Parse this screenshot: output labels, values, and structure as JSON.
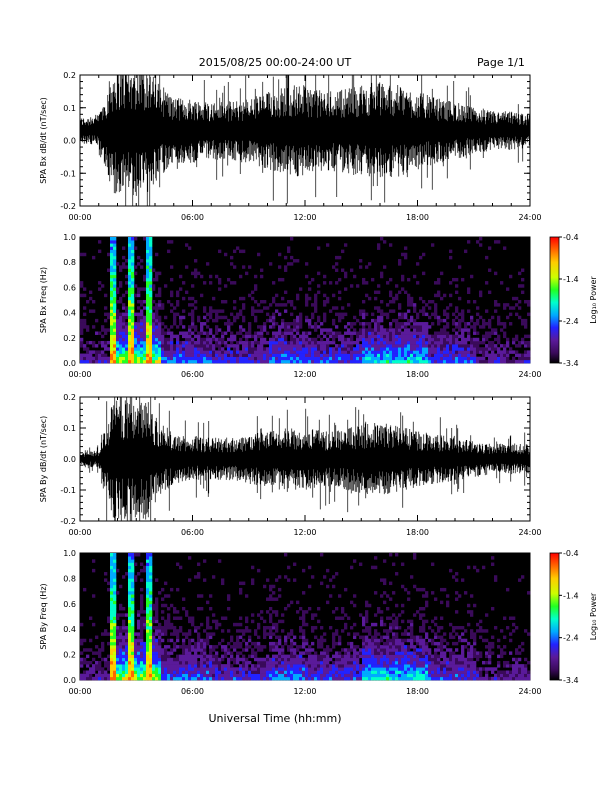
{
  "header": {
    "date_range": "2015/08/25  00:00-24:00 UT",
    "page": "Page 1/1"
  },
  "footer": {
    "xlabel": "Universal Time (hh:mm)"
  },
  "colors": {
    "trace": "#000000",
    "background": "#ffffff",
    "spectrogram_bg": "#000000",
    "colormap": [
      "#000000",
      "#3a0a5a",
      "#5a1a9a",
      "#2222ff",
      "#00aaff",
      "#00ffcc",
      "#22ff22",
      "#ccff00",
      "#ffcc00",
      "#ff6600",
      "#ff0000"
    ]
  },
  "chart_data": [
    {
      "type": "line",
      "name": "bx-waveform",
      "ylabel": "SPA Bx dB/dt (nT/sec)",
      "xlim": [
        "00:00",
        "24:00"
      ],
      "ylim": [
        -0.2,
        0.2
      ],
      "xticks": [
        "00:00",
        "06:00",
        "12:00",
        "18:00",
        "24:00"
      ],
      "yticks": [
        "-0.2",
        "-0.1",
        "0.0",
        "0.1",
        "0.2"
      ],
      "x_hours": [
        0,
        1,
        1.8,
        2.5,
        3,
        3.5,
        4,
        5,
        6,
        7,
        8,
        9,
        10,
        11,
        12,
        13,
        14,
        15,
        16,
        17,
        18,
        19,
        20,
        21,
        22,
        23,
        24
      ],
      "amplitude": [
        0.04,
        0.05,
        0.2,
        0.2,
        0.2,
        0.2,
        0.16,
        0.1,
        0.1,
        0.09,
        0.09,
        0.1,
        0.12,
        0.14,
        0.14,
        0.12,
        0.13,
        0.14,
        0.15,
        0.14,
        0.12,
        0.1,
        0.09,
        0.07,
        0.06,
        0.06,
        0.05
      ],
      "offset": 0.03
    },
    {
      "type": "heatmap",
      "name": "bx-spectrogram",
      "ylabel": "SPA Bx Freq (Hz)",
      "xlim": [
        "00:00",
        "24:00"
      ],
      "ylim": [
        0.0,
        1.0
      ],
      "xticks": [
        "00:00",
        "06:00",
        "12:00",
        "18:00",
        "24:00"
      ],
      "yticks": [
        "0.0",
        "0.2",
        "0.4",
        "0.6",
        "0.8",
        "1.0"
      ],
      "colorbar": {
        "label": "Log₁₀ Power",
        "ticks": [
          "-0.4",
          "-1.4",
          "-2.4",
          "-3.4"
        ],
        "range": [
          -3.4,
          -0.4
        ]
      }
    },
    {
      "type": "line",
      "name": "by-waveform",
      "ylabel": "SPA By dB/dt (nT/sec)",
      "xlim": [
        "00:00",
        "24:00"
      ],
      "ylim": [
        -0.2,
        0.2
      ],
      "xticks": [
        "00:00",
        "06:00",
        "12:00",
        "18:00",
        "24:00"
      ],
      "yticks": [
        "-0.2",
        "-0.1",
        "0.0",
        "0.1",
        "0.2"
      ],
      "x_hours": [
        0,
        1,
        1.8,
        2.5,
        3,
        3.5,
        4,
        5,
        6,
        7,
        8,
        9,
        10,
        11,
        12,
        13,
        14,
        15,
        16,
        17,
        18,
        19,
        20,
        21,
        22,
        23,
        24
      ],
      "amplitude": [
        0.02,
        0.03,
        0.2,
        0.2,
        0.2,
        0.2,
        0.14,
        0.08,
        0.07,
        0.07,
        0.07,
        0.08,
        0.09,
        0.1,
        0.1,
        0.09,
        0.1,
        0.11,
        0.12,
        0.11,
        0.09,
        0.08,
        0.07,
        0.06,
        0.05,
        0.05,
        0.05
      ],
      "offset": 0.0
    },
    {
      "type": "heatmap",
      "name": "by-spectrogram",
      "ylabel": "SPA By Freq (Hz)",
      "xlim": [
        "00:00",
        "24:00"
      ],
      "ylim": [
        0.0,
        1.0
      ],
      "xticks": [
        "00:00",
        "06:00",
        "12:00",
        "18:00",
        "24:00"
      ],
      "yticks": [
        "0.0",
        "0.2",
        "0.4",
        "0.6",
        "0.8",
        "1.0"
      ],
      "colorbar": {
        "label": "Log₁₀ Power",
        "ticks": [
          "-0.4",
          "-1.4",
          "-2.4",
          "-3.4"
        ],
        "range": [
          -3.4,
          -0.4
        ]
      }
    }
  ]
}
